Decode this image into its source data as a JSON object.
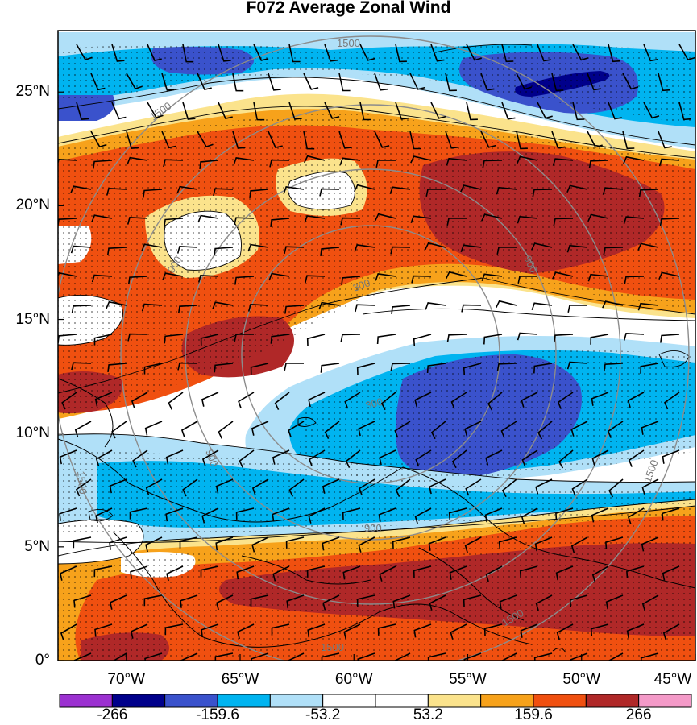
{
  "title": "F072 Average Zonal Wind",
  "lat_ticks": [
    {
      "label": "25°N",
      "value": 25
    },
    {
      "label": "20°N",
      "value": 20
    },
    {
      "label": "15°N",
      "value": 15
    },
    {
      "label": "10°N",
      "value": 10
    },
    {
      "label": "5°N",
      "value": 5
    },
    {
      "label": "0°",
      "value": 0
    }
  ],
  "lon_ticks": [
    {
      "label": "70°W",
      "value": -70
    },
    {
      "label": "65°W",
      "value": -65
    },
    {
      "label": "60°W",
      "value": -60
    },
    {
      "label": "55°W",
      "value": -55
    },
    {
      "label": "50°W",
      "value": -50
    },
    {
      "label": "45°W",
      "value": -45
    }
  ],
  "range_ring_labels": [
    "1500",
    "1500",
    "900",
    "900",
    "300",
    "300",
    "900",
    "1500",
    "1500",
    "1500",
    "900",
    "1500"
  ],
  "colorbar": {
    "labels": [
      "-266",
      "-159.6",
      "-53.2",
      "53.2",
      "159.6",
      "266"
    ],
    "colors": [
      "#9b30d0",
      "#00008b",
      "#3a52cc",
      "#00b4f0",
      "#b0e0f8",
      "#ffffff",
      "#ffffff",
      "#fbe38c",
      "#f7a21b",
      "#f05010",
      "#b02828",
      "#f49ac8"
    ]
  },
  "palette": {
    "ocean": "#ffffff",
    "light_blue": "#b0e0f8",
    "blue": "#00b4f0",
    "royal": "#3a52cc",
    "navy": "#00008b",
    "yellow": "#fbe38c",
    "orange": "#f7a21b",
    "red_orange": "#f05010",
    "dark_red": "#b02828"
  }
}
